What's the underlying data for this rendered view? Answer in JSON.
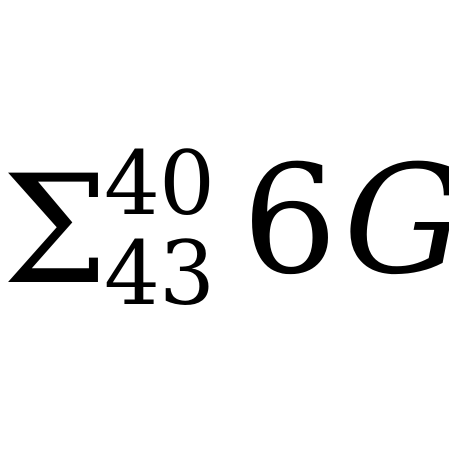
{
  "formula": {
    "operator": "Σ",
    "superscript": "40",
    "subscript": "43",
    "coefficient": "6",
    "variable": "G"
  }
}
